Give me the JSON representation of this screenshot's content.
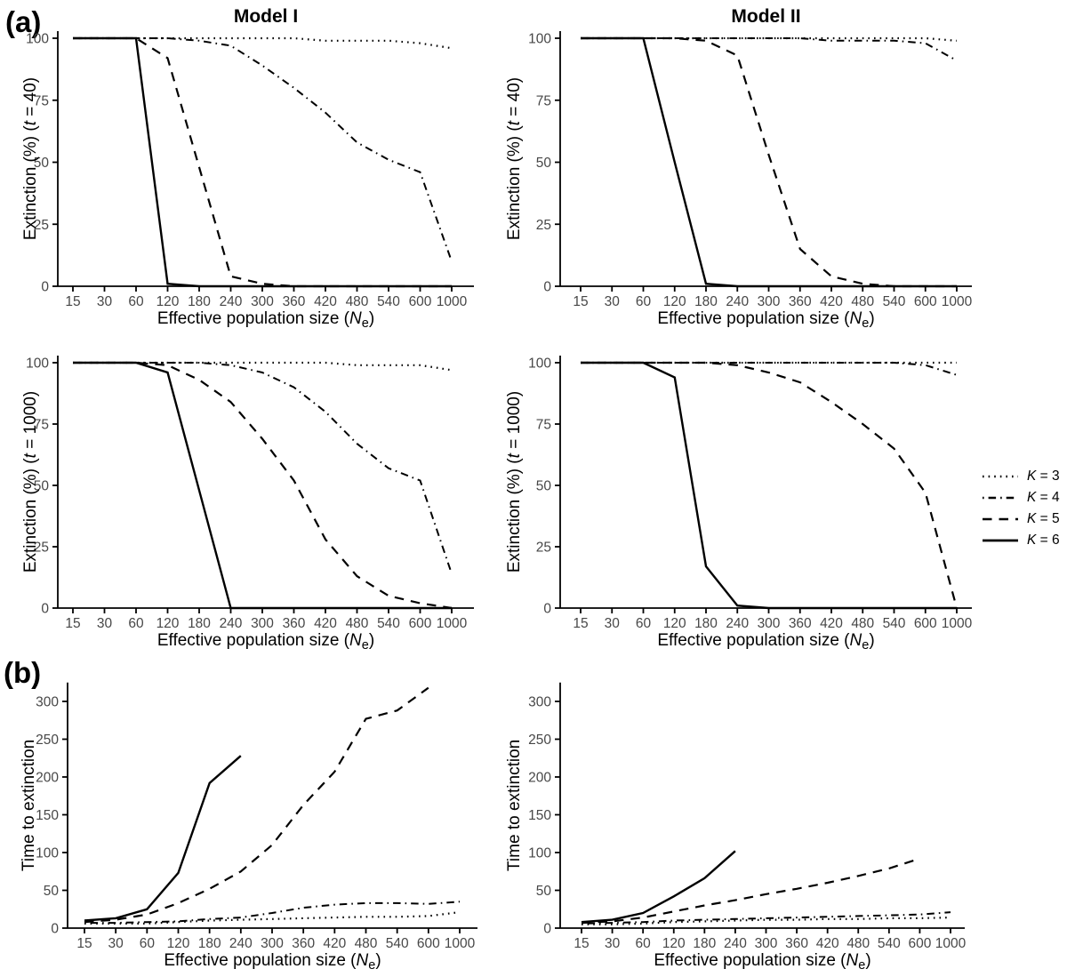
{
  "figure": {
    "panel_a_label": "(a)",
    "panel_b_label": "(b)",
    "x_axis": {
      "label_pre": "Effective population size (",
      "label_italic": "N",
      "label_sub": "e",
      "label_post": ")",
      "categories": [
        15,
        30,
        60,
        120,
        180,
        240,
        300,
        360,
        420,
        480,
        540,
        600,
        1000
      ]
    },
    "line_color": "#000000",
    "tick_label_color": "#474747",
    "legend": [
      {
        "it": "K",
        "rest": " = 3",
        "style": "dotted"
      },
      {
        "it": "K",
        "rest": " = 4",
        "style": "dotdash"
      },
      {
        "it": "K",
        "rest": " = 5",
        "style": "dashed"
      },
      {
        "it": "K",
        "rest": " = 6",
        "style": "solid"
      }
    ]
  },
  "chart_data": [
    {
      "id": "extinction-model1-t40",
      "type": "line",
      "title": "Model I",
      "ylabel": {
        "pre": "Extinction (%)  (",
        "it": "t",
        "post": " = 40)"
      },
      "yticks": [
        0,
        25,
        50,
        75,
        100
      ],
      "ylim": [
        0,
        100
      ],
      "series": [
        {
          "name": "K = 3",
          "style": "dotted",
          "values": [
            100,
            100,
            100,
            100,
            100,
            100,
            100,
            100,
            99,
            99,
            99,
            98,
            96
          ]
        },
        {
          "name": "K = 4",
          "style": "dotdash",
          "values": [
            100,
            100,
            100,
            100,
            99,
            97,
            89,
            80,
            70,
            58,
            51,
            46,
            10
          ]
        },
        {
          "name": "K = 5",
          "style": "dashed",
          "values": [
            100,
            100,
            100,
            92,
            48,
            4,
            1,
            0,
            0,
            0,
            0,
            0,
            0
          ]
        },
        {
          "name": "K = 6",
          "style": "solid",
          "values": [
            100,
            100,
            100,
            1,
            0,
            0,
            0,
            0,
            0,
            0,
            0,
            0,
            0
          ]
        }
      ]
    },
    {
      "id": "extinction-model2-t40",
      "type": "line",
      "title": "Model II",
      "ylabel": {
        "pre": "Extinction (%)  (",
        "it": "t",
        "post": " = 40)"
      },
      "yticks": [
        0,
        25,
        50,
        75,
        100
      ],
      "ylim": [
        0,
        100
      ],
      "series": [
        {
          "name": "K = 3",
          "style": "dotted",
          "values": [
            100,
            100,
            100,
            100,
            100,
            100,
            100,
            100,
            100,
            100,
            100,
            100,
            99
          ]
        },
        {
          "name": "K = 4",
          "style": "dotdash",
          "values": [
            100,
            100,
            100,
            100,
            100,
            100,
            100,
            100,
            99,
            99,
            99,
            98,
            91
          ]
        },
        {
          "name": "K = 5",
          "style": "dashed",
          "values": [
            100,
            100,
            100,
            100,
            99,
            93,
            53,
            15,
            4,
            1,
            0,
            0,
            0
          ]
        },
        {
          "name": "K = 6",
          "style": "solid",
          "values": [
            100,
            100,
            100,
            50,
            1,
            0,
            0,
            0,
            0,
            0,
            0,
            0,
            0
          ]
        }
      ]
    },
    {
      "id": "extinction-model1-t1000",
      "type": "line",
      "title": "",
      "ylabel": {
        "pre": "Extinction (%)  (",
        "it": "t",
        "post": " = 1000)"
      },
      "yticks": [
        0,
        25,
        50,
        75,
        100
      ],
      "ylim": [
        0,
        100
      ],
      "series": [
        {
          "name": "K = 3",
          "style": "dotted",
          "values": [
            100,
            100,
            100,
            100,
            100,
            100,
            100,
            100,
            100,
            99,
            99,
            99,
            97
          ]
        },
        {
          "name": "K = 4",
          "style": "dotdash",
          "values": [
            100,
            100,
            100,
            100,
            100,
            99,
            96,
            90,
            80,
            67,
            57,
            52,
            14
          ]
        },
        {
          "name": "K = 5",
          "style": "dashed",
          "values": [
            100,
            100,
            100,
            99,
            93,
            84,
            69,
            52,
            28,
            13,
            5,
            2,
            0
          ]
        },
        {
          "name": "K = 6",
          "style": "solid",
          "values": [
            100,
            100,
            100,
            96,
            48,
            0,
            0,
            0,
            0,
            0,
            0,
            0,
            0
          ]
        }
      ]
    },
    {
      "id": "extinction-model2-t1000",
      "type": "line",
      "title": "",
      "ylabel": {
        "pre": "Extinction (%)  (",
        "it": "t",
        "post": " = 1000)"
      },
      "yticks": [
        0,
        25,
        50,
        75,
        100
      ],
      "ylim": [
        0,
        100
      ],
      "series": [
        {
          "name": "K = 3",
          "style": "dotted",
          "values": [
            100,
            100,
            100,
            100,
            100,
            100,
            100,
            100,
            100,
            100,
            100,
            100,
            100
          ]
        },
        {
          "name": "K = 4",
          "style": "dotdash",
          "values": [
            100,
            100,
            100,
            100,
            100,
            100,
            100,
            100,
            100,
            100,
            100,
            99,
            95
          ]
        },
        {
          "name": "K = 5",
          "style": "dashed",
          "values": [
            100,
            100,
            100,
            100,
            100,
            99,
            96,
            92,
            84,
            75,
            65,
            47,
            0
          ]
        },
        {
          "name": "K = 6",
          "style": "solid",
          "values": [
            100,
            100,
            100,
            94,
            17,
            1,
            0,
            0,
            0,
            0,
            0,
            0,
            0
          ]
        }
      ]
    },
    {
      "id": "time-to-extinction-model1",
      "type": "line",
      "title": "",
      "ylabel": {
        "pre": "Time to extinction",
        "it": "",
        "post": ""
      },
      "yticks": [
        0,
        50,
        100,
        150,
        200,
        250,
        300
      ],
      "ylim": [
        0,
        325
      ],
      "series": [
        {
          "name": "K = 3",
          "style": "dotted",
          "values": [
            6,
            6,
            6,
            8,
            10,
            11,
            12,
            13,
            14,
            15,
            15,
            16,
            21
          ]
        },
        {
          "name": "K = 4",
          "style": "dotdash",
          "values": [
            7,
            7,
            8,
            9,
            12,
            14,
            20,
            27,
            31,
            33,
            33,
            32,
            35
          ]
        },
        {
          "name": "K = 5",
          "style": "dashed",
          "values": [
            8,
            11,
            18,
            33,
            52,
            75,
            110,
            163,
            207,
            277,
            288,
            318,
            null
          ]
        },
        {
          "name": "K = 6",
          "style": "solid",
          "values": [
            10,
            13,
            25,
            73,
            192,
            228,
            null,
            null,
            null,
            null,
            null,
            null,
            null
          ]
        }
      ]
    },
    {
      "id": "time-to-extinction-model2",
      "type": "line",
      "title": "",
      "ylabel": {
        "pre": "Time to extinction",
        "it": "",
        "post": ""
      },
      "yticks": [
        0,
        50,
        100,
        150,
        200,
        250,
        300
      ],
      "ylim": [
        0,
        325
      ],
      "series": [
        {
          "name": "K = 3",
          "style": "dotted",
          "values": [
            5,
            5,
            6,
            8,
            9,
            10,
            11,
            11,
            12,
            12,
            13,
            13,
            14
          ]
        },
        {
          "name": "K = 4",
          "style": "dotdash",
          "values": [
            6,
            7,
            8,
            10,
            11,
            12,
            13,
            14,
            15,
            16,
            17,
            18,
            21
          ]
        },
        {
          "name": "K = 5",
          "style": "dashed",
          "values": [
            7,
            9,
            14,
            22,
            30,
            37,
            45,
            52,
            60,
            69,
            79,
            92,
            null
          ]
        },
        {
          "name": "K = 6",
          "style": "solid",
          "values": [
            8,
            11,
            20,
            42,
            66,
            102,
            null,
            null,
            null,
            null,
            null,
            null,
            null
          ]
        }
      ]
    }
  ]
}
